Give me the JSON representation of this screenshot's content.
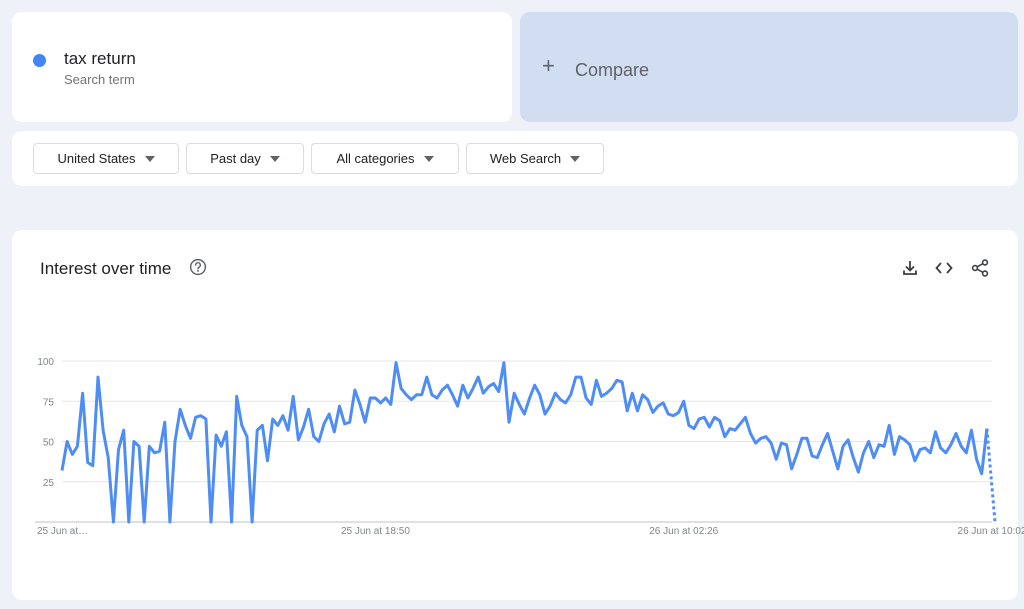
{
  "search_term": {
    "name": "tax return",
    "subtitle": "Search term",
    "color": "#4285f4"
  },
  "compare": {
    "plus": "+",
    "label": "Compare"
  },
  "filters": [
    {
      "label": "United States"
    },
    {
      "label": "Past day"
    },
    {
      "label": "All categories"
    },
    {
      "label": "Web Search"
    }
  ],
  "chart_section": {
    "title": "Interest over time",
    "icons": [
      "help-icon",
      "download-icon",
      "embed-code-icon",
      "share-icon"
    ]
  },
  "chart_data": {
    "type": "line",
    "title": "Interest over time",
    "xlabel": "",
    "ylabel": "",
    "ylim": [
      0,
      100
    ],
    "yticks": [
      "100",
      "75",
      "50",
      "25"
    ],
    "ytick_values": [
      100,
      75,
      50,
      25
    ],
    "xtick_labels": [
      "25 Jun at…",
      "25 Jun at 18:50",
      "26 Jun at 02:26",
      "26 Jun at 10:02"
    ],
    "xtick_indices": [
      0,
      61,
      121,
      181
    ],
    "grid": true,
    "line_color": "#4e8df5",
    "series": [
      {
        "values": [
          32,
          50,
          42,
          47,
          80,
          37,
          35,
          90,
          57,
          40,
          0,
          45,
          57,
          0,
          50,
          47,
          0,
          47,
          43,
          44,
          62,
          0,
          50,
          70,
          60,
          52,
          65,
          66,
          64,
          0,
          54,
          47,
          56,
          0,
          78,
          60,
          53,
          0,
          57,
          60,
          38,
          64,
          60,
          66,
          57,
          78,
          51,
          59,
          70,
          53,
          50,
          61,
          67,
          56,
          72,
          61,
          62,
          82,
          73,
          62,
          77,
          77,
          74,
          77,
          73,
          99,
          83,
          79,
          76,
          79,
          79,
          90,
          79,
          77,
          82,
          85,
          79,
          72,
          85,
          77,
          83,
          90,
          80,
          84,
          86,
          81,
          99,
          62,
          80,
          73,
          67,
          77,
          85,
          79,
          67,
          72,
          80,
          76,
          74,
          79,
          90,
          90,
          77,
          73,
          88,
          78,
          80,
          83,
          88,
          87,
          69,
          80,
          69,
          79,
          76,
          68,
          72,
          74,
          67,
          66,
          68,
          75,
          60,
          58,
          64,
          65,
          59,
          65,
          63,
          53,
          58,
          57,
          61,
          65,
          55,
          49,
          52,
          53,
          49,
          39,
          49,
          48,
          33,
          42,
          52,
          52,
          41,
          40,
          48,
          55,
          44,
          33,
          47,
          51,
          40,
          31,
          43,
          50,
          40,
          48,
          47,
          60,
          42,
          53,
          51,
          48,
          38,
          45,
          46,
          43,
          56,
          46,
          43,
          48,
          55,
          47,
          43,
          57,
          39,
          30,
          58,
          0
        ]
      }
    ],
    "partial_tail_values": [
      58,
      0
    ]
  }
}
